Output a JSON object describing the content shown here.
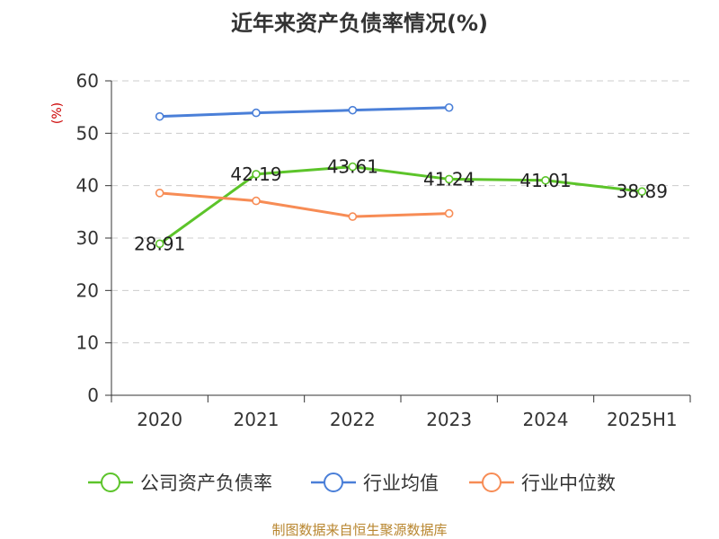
{
  "chart_data": {
    "type": "line",
    "title": "近年来资产负债率情况(%)",
    "ylabel": "(%)",
    "xlabel": "",
    "categories": [
      "2020",
      "2021",
      "2022",
      "2023",
      "2024",
      "2025H1"
    ],
    "ylim": [
      0,
      60
    ],
    "yticks": [
      0,
      10,
      20,
      30,
      40,
      50,
      60
    ],
    "grid": true,
    "legend_position": "bottom",
    "series": [
      {
        "name": "公司资产负债率",
        "color": "#5cc42a",
        "values": [
          28.91,
          42.19,
          43.61,
          41.24,
          41.01,
          38.89
        ],
        "labels": [
          "28.91",
          "42.19",
          "43.61",
          "41.24",
          "41.01",
          "38.89"
        ]
      },
      {
        "name": "行业均值",
        "color": "#4a7fd8",
        "values": [
          53.2,
          53.9,
          54.4,
          54.9,
          null,
          null
        ]
      },
      {
        "name": "行业中位数",
        "color": "#f78c55",
        "values": [
          38.6,
          37.1,
          34.1,
          34.7,
          null,
          null
        ]
      }
    ],
    "source": "制图数据来自恒生聚源数据库"
  }
}
